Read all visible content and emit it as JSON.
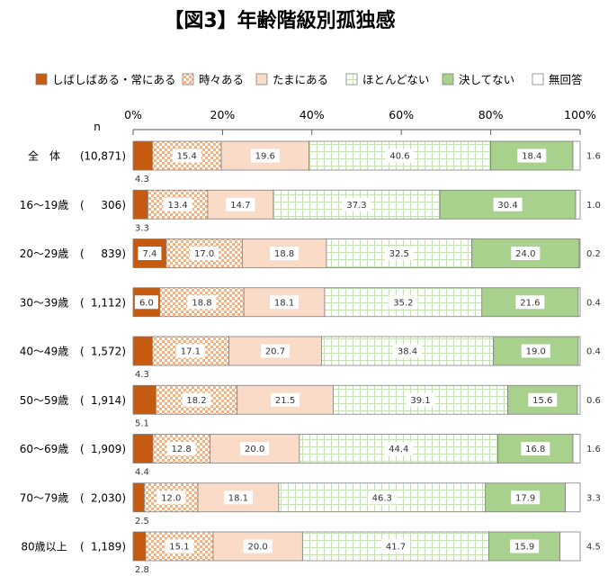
{
  "chart_data": {
    "type": "bar",
    "orientation": "horizontal",
    "stacked": true,
    "title": "【図3】年齢階級別孤独感",
    "n_header": "n",
    "xlim": [
      0,
      100
    ],
    "xticks": [
      0,
      20,
      40,
      60,
      80,
      100
    ],
    "xtick_labels": [
      "0%",
      "20%",
      "40%",
      "60%",
      "80%",
      "100%"
    ],
    "legend_position": "top",
    "grid": false,
    "categories": [
      "全　体",
      "16～19歳",
      "20～29歳",
      "30～39歳",
      "40～49歳",
      "50～59歳",
      "60～69歳",
      "70～79歳",
      "80歳以上"
    ],
    "n": [
      10871,
      306,
      839,
      1112,
      1572,
      1914,
      1909,
      2030,
      1189
    ],
    "series": [
      {
        "name": "しばしばある・常にある",
        "color": "#c55a11",
        "fill_style": "solid",
        "values": [
          4.3,
          3.3,
          7.4,
          6.0,
          4.3,
          5.1,
          4.4,
          2.5,
          2.8
        ]
      },
      {
        "name": "時々ある",
        "color": "#f4b183",
        "fill_style": "checkered",
        "values": [
          15.4,
          13.4,
          17.0,
          18.8,
          17.1,
          18.2,
          12.8,
          12.0,
          15.1
        ]
      },
      {
        "name": "たまにある",
        "color": "#fadbc8",
        "fill_style": "solid",
        "values": [
          19.6,
          14.7,
          18.8,
          18.1,
          20.7,
          21.5,
          20.0,
          18.1,
          20.0
        ]
      },
      {
        "name": "ほとんどない",
        "color": "#c5e0b4",
        "fill_style": "grid",
        "values": [
          40.6,
          37.3,
          32.5,
          35.2,
          38.4,
          39.1,
          44.4,
          46.3,
          41.7
        ]
      },
      {
        "name": "決してない",
        "color": "#a9d18e",
        "fill_style": "solid",
        "values": [
          18.4,
          30.4,
          24.0,
          21.6,
          19.0,
          15.6,
          16.8,
          17.9,
          15.9
        ]
      },
      {
        "name": "無回答",
        "color": "#ffffff",
        "fill_style": "solid",
        "values": [
          1.6,
          1.0,
          0.2,
          0.4,
          0.4,
          0.6,
          1.6,
          3.3,
          4.5
        ]
      }
    ]
  }
}
